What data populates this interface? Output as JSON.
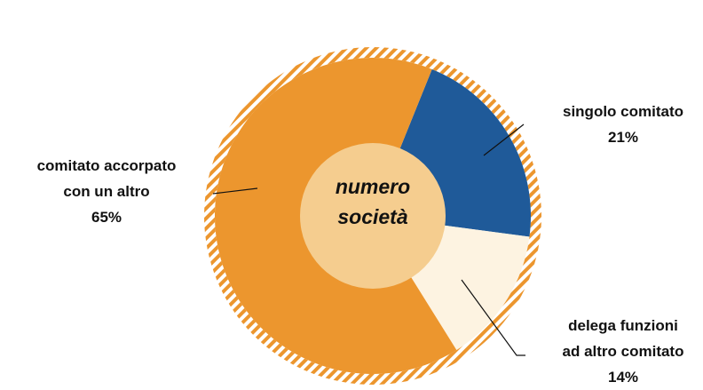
{
  "chart_data": {
    "type": "donut",
    "center_text": "numero\nsocietà",
    "categories": [
      "singolo comitato",
      "delega funzioni\nad altro comitato",
      "comitato accorpato\ncon un altro"
    ],
    "values": [
      21,
      14,
      65
    ],
    "value_labels": [
      "21%",
      "14%",
      "65%"
    ],
    "colors": [
      "#1f5a99",
      "#fdf3e1",
      "#ec962e"
    ]
  }
}
